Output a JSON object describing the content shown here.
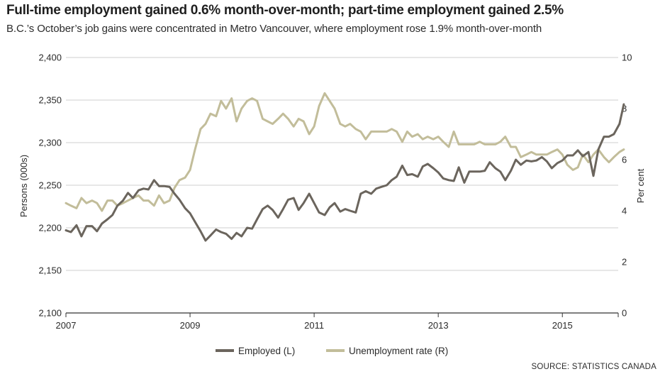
{
  "title": "Full-time employment gained 0.6% month-over-month; part-time employment gained 2.5%",
  "subtitle": "B.C.’s October’s job gains were concentrated in Metro Vancouver, where employment rose 1.9% month-over-month",
  "source": "SOURCE: STATISTICS CANADA",
  "colors": {
    "employed": "#6b655d",
    "unemployment": "#c2bd9a",
    "grid": "#cfcfcf",
    "axis": "#333333"
  },
  "chart_data": {
    "type": "line",
    "ylabel_left": "Persons (000s)",
    "ylabel_right": "Per cent",
    "left_axis": {
      "ylim": [
        2100,
        2400
      ],
      "ticks": [
        2100,
        2150,
        2200,
        2250,
        2300,
        2350,
        2400
      ],
      "tick_labels": [
        "2,100",
        "2,150",
        "2,200",
        "2,250",
        "2,300",
        "2,350",
        "2,400"
      ]
    },
    "right_axis": {
      "ylim": [
        0,
        10
      ],
      "ticks": [
        0,
        2,
        4,
        6,
        8,
        10
      ],
      "tick_labels": [
        "0",
        "2",
        "4",
        "6",
        "8",
        "10"
      ]
    },
    "x_axis": {
      "xlim": [
        2007,
        2015.9
      ],
      "ticks": [
        2007,
        2009,
        2011,
        2013,
        2015
      ],
      "tick_labels": [
        "2007",
        "2009",
        "2011",
        "2013",
        "2015"
      ]
    },
    "grid": true,
    "legend_position": "bottom-center",
    "series": [
      {
        "name": "Employed (L)",
        "axis": "left",
        "color": "#6b655d",
        "points": [
          [
            2007.0,
            2197
          ],
          [
            2007.08,
            2195
          ],
          [
            2007.17,
            2203
          ],
          [
            2007.25,
            2190
          ],
          [
            2007.33,
            2202
          ],
          [
            2007.42,
            2202
          ],
          [
            2007.5,
            2196
          ],
          [
            2007.58,
            2205
          ],
          [
            2007.67,
            2210
          ],
          [
            2007.75,
            2215
          ],
          [
            2007.83,
            2226
          ],
          [
            2007.92,
            2232
          ],
          [
            2008.0,
            2241
          ],
          [
            2008.08,
            2235
          ],
          [
            2008.17,
            2244
          ],
          [
            2008.25,
            2246
          ],
          [
            2008.33,
            2245
          ],
          [
            2008.42,
            2256
          ],
          [
            2008.5,
            2249
          ],
          [
            2008.58,
            2249
          ],
          [
            2008.67,
            2248
          ],
          [
            2008.75,
            2240
          ],
          [
            2008.83,
            2233
          ],
          [
            2008.92,
            2223
          ],
          [
            2009.0,
            2217
          ],
          [
            2009.08,
            2207
          ],
          [
            2009.17,
            2196
          ],
          [
            2009.25,
            2185
          ],
          [
            2009.33,
            2191
          ],
          [
            2009.42,
            2198
          ],
          [
            2009.5,
            2195
          ],
          [
            2009.58,
            2193
          ],
          [
            2009.67,
            2187
          ],
          [
            2009.75,
            2194
          ],
          [
            2009.83,
            2190
          ],
          [
            2009.92,
            2200
          ],
          [
            2010.0,
            2199
          ],
          [
            2010.08,
            2210
          ],
          [
            2010.17,
            2222
          ],
          [
            2010.25,
            2226
          ],
          [
            2010.33,
            2221
          ],
          [
            2010.42,
            2212
          ],
          [
            2010.5,
            2222
          ],
          [
            2010.58,
            2233
          ],
          [
            2010.67,
            2235
          ],
          [
            2010.75,
            2221
          ],
          [
            2010.83,
            2229
          ],
          [
            2010.92,
            2240
          ],
          [
            2011.0,
            2229
          ],
          [
            2011.08,
            2218
          ],
          [
            2011.17,
            2215
          ],
          [
            2011.25,
            2224
          ],
          [
            2011.33,
            2229
          ],
          [
            2011.42,
            2219
          ],
          [
            2011.5,
            2222
          ],
          [
            2011.58,
            2220
          ],
          [
            2011.67,
            2218
          ],
          [
            2011.75,
            2240
          ],
          [
            2011.83,
            2243
          ],
          [
            2011.92,
            2240
          ],
          [
            2012.0,
            2246
          ],
          [
            2012.08,
            2248
          ],
          [
            2012.17,
            2250
          ],
          [
            2012.25,
            2256
          ],
          [
            2012.33,
            2260
          ],
          [
            2012.42,
            2273
          ],
          [
            2012.5,
            2262
          ],
          [
            2012.58,
            2263
          ],
          [
            2012.67,
            2260
          ],
          [
            2012.75,
            2272
          ],
          [
            2012.83,
            2275
          ],
          [
            2012.92,
            2270
          ],
          [
            2013.0,
            2265
          ],
          [
            2013.08,
            2258
          ],
          [
            2013.17,
            2256
          ],
          [
            2013.25,
            2255
          ],
          [
            2013.33,
            2271
          ],
          [
            2013.42,
            2253
          ],
          [
            2013.5,
            2266
          ],
          [
            2013.58,
            2266
          ],
          [
            2013.67,
            2266
          ],
          [
            2013.75,
            2267
          ],
          [
            2013.83,
            2277
          ],
          [
            2013.92,
            2270
          ],
          [
            2014.0,
            2266
          ],
          [
            2014.08,
            2256
          ],
          [
            2014.17,
            2267
          ],
          [
            2014.25,
            2280
          ],
          [
            2014.33,
            2274
          ],
          [
            2014.42,
            2279
          ],
          [
            2014.5,
            2278
          ],
          [
            2014.58,
            2279
          ],
          [
            2014.67,
            2283
          ],
          [
            2014.75,
            2278
          ],
          [
            2014.83,
            2270
          ],
          [
            2014.92,
            2276
          ],
          [
            2015.0,
            2279
          ],
          [
            2015.08,
            2285
          ],
          [
            2015.17,
            2285
          ],
          [
            2015.25,
            2291
          ],
          [
            2015.33,
            2284
          ],
          [
            2015.42,
            2289
          ],
          [
            2015.5,
            2261
          ],
          [
            2015.58,
            2292
          ],
          [
            2015.67,
            2307
          ],
          [
            2015.75,
            2307
          ],
          [
            2015.83,
            2310
          ],
          [
            2015.92,
            2322
          ],
          [
            2015.99,
            2345
          ]
        ]
      },
      {
        "name": "Unemployment rate (R)",
        "axis": "right",
        "color": "#c2bd9a",
        "points": [
          [
            2007.0,
            4.3
          ],
          [
            2007.08,
            4.2
          ],
          [
            2007.17,
            4.1
          ],
          [
            2007.25,
            4.5
          ],
          [
            2007.33,
            4.3
          ],
          [
            2007.42,
            4.4
          ],
          [
            2007.5,
            4.3
          ],
          [
            2007.58,
            4.0
          ],
          [
            2007.67,
            4.4
          ],
          [
            2007.75,
            4.4
          ],
          [
            2007.83,
            4.2
          ],
          [
            2007.92,
            4.3
          ],
          [
            2008.0,
            4.4
          ],
          [
            2008.08,
            4.5
          ],
          [
            2008.17,
            4.6
          ],
          [
            2008.25,
            4.4
          ],
          [
            2008.33,
            4.4
          ],
          [
            2008.42,
            4.2
          ],
          [
            2008.5,
            4.6
          ],
          [
            2008.58,
            4.3
          ],
          [
            2008.67,
            4.4
          ],
          [
            2008.75,
            4.9
          ],
          [
            2008.83,
            5.2
          ],
          [
            2008.92,
            5.3
          ],
          [
            2009.0,
            5.6
          ],
          [
            2009.08,
            6.4
          ],
          [
            2009.17,
            7.2
          ],
          [
            2009.25,
            7.4
          ],
          [
            2009.33,
            7.8
          ],
          [
            2009.42,
            7.7
          ],
          [
            2009.5,
            8.3
          ],
          [
            2009.58,
            8.0
          ],
          [
            2009.67,
            8.4
          ],
          [
            2009.75,
            7.5
          ],
          [
            2009.83,
            8.0
          ],
          [
            2009.92,
            8.3
          ],
          [
            2010.0,
            8.4
          ],
          [
            2010.08,
            8.3
          ],
          [
            2010.17,
            7.6
          ],
          [
            2010.25,
            7.5
          ],
          [
            2010.33,
            7.4
          ],
          [
            2010.42,
            7.6
          ],
          [
            2010.5,
            7.8
          ],
          [
            2010.58,
            7.6
          ],
          [
            2010.67,
            7.3
          ],
          [
            2010.75,
            7.6
          ],
          [
            2010.83,
            7.5
          ],
          [
            2010.92,
            7.0
          ],
          [
            2011.0,
            7.3
          ],
          [
            2011.08,
            8.1
          ],
          [
            2011.17,
            8.6
          ],
          [
            2011.25,
            8.3
          ],
          [
            2011.33,
            8.0
          ],
          [
            2011.42,
            7.4
          ],
          [
            2011.5,
            7.3
          ],
          [
            2011.58,
            7.4
          ],
          [
            2011.67,
            7.2
          ],
          [
            2011.75,
            7.1
          ],
          [
            2011.83,
            6.8
          ],
          [
            2011.92,
            7.1
          ],
          [
            2012.0,
            7.1
          ],
          [
            2012.08,
            7.1
          ],
          [
            2012.17,
            7.1
          ],
          [
            2012.25,
            7.2
          ],
          [
            2012.33,
            7.1
          ],
          [
            2012.42,
            6.7
          ],
          [
            2012.5,
            7.1
          ],
          [
            2012.58,
            6.9
          ],
          [
            2012.67,
            7.0
          ],
          [
            2012.75,
            6.8
          ],
          [
            2012.83,
            6.9
          ],
          [
            2012.92,
            6.8
          ],
          [
            2013.0,
            6.9
          ],
          [
            2013.08,
            6.7
          ],
          [
            2013.17,
            6.5
          ],
          [
            2013.25,
            7.1
          ],
          [
            2013.33,
            6.6
          ],
          [
            2013.42,
            6.6
          ],
          [
            2013.5,
            6.6
          ],
          [
            2013.58,
            6.6
          ],
          [
            2013.67,
            6.7
          ],
          [
            2013.75,
            6.6
          ],
          [
            2013.83,
            6.6
          ],
          [
            2013.92,
            6.6
          ],
          [
            2014.0,
            6.7
          ],
          [
            2014.08,
            6.9
          ],
          [
            2014.17,
            6.5
          ],
          [
            2014.25,
            6.5
          ],
          [
            2014.33,
            6.1
          ],
          [
            2014.42,
            6.2
          ],
          [
            2014.5,
            6.3
          ],
          [
            2014.58,
            6.2
          ],
          [
            2014.67,
            6.2
          ],
          [
            2014.75,
            6.2
          ],
          [
            2014.83,
            6.3
          ],
          [
            2014.92,
            6.4
          ],
          [
            2015.0,
            6.2
          ],
          [
            2015.08,
            5.8
          ],
          [
            2015.17,
            5.6
          ],
          [
            2015.25,
            5.7
          ],
          [
            2015.33,
            6.2
          ],
          [
            2015.42,
            5.9
          ],
          [
            2015.5,
            6.2
          ],
          [
            2015.58,
            6.4
          ],
          [
            2015.67,
            6.1
          ],
          [
            2015.75,
            5.9
          ],
          [
            2015.83,
            6.1
          ],
          [
            2015.92,
            6.3
          ],
          [
            2015.99,
            6.4
          ]
        ]
      }
    ]
  }
}
